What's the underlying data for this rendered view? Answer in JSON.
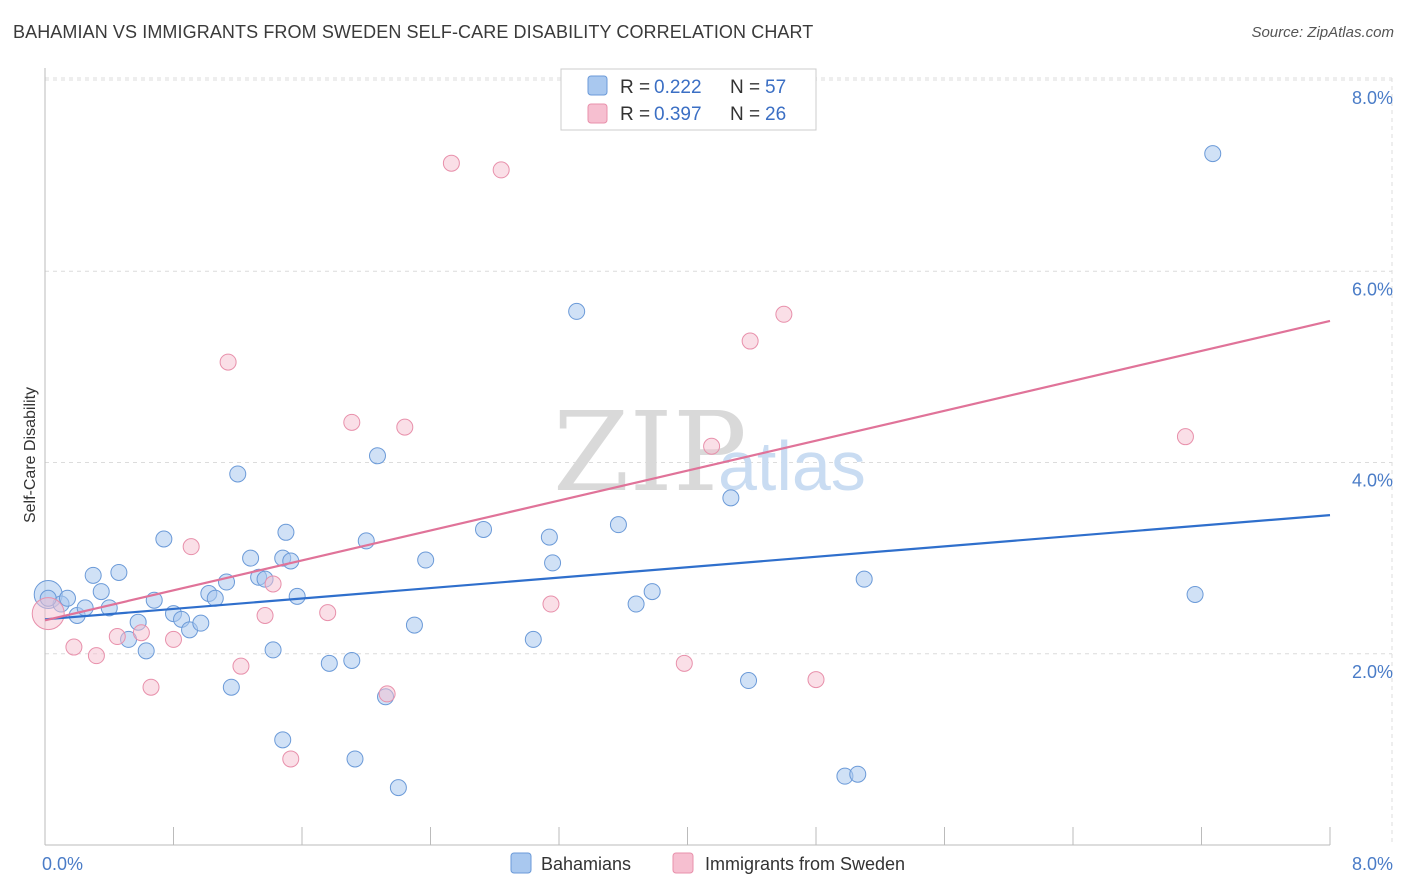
{
  "title": "BAHAMIAN VS IMMIGRANTS FROM SWEDEN SELF-CARE DISABILITY CORRELATION CHART",
  "source": "Source: ZipAtlas.com",
  "watermark": {
    "part1": "ZIP",
    "part2": "atlas"
  },
  "colors": {
    "blue_fill": "#a9c8ef",
    "blue_stroke": "#6b9ad8",
    "blue_line": "#2f6fcc",
    "pink_fill": "#f6bfd0",
    "pink_stroke": "#e890ab",
    "pink_line": "#e07399",
    "grid": "#dcdcdc",
    "tick_text": "#4a7cc7"
  },
  "chart_data": {
    "type": "scatter",
    "title": "BAHAMIAN VS IMMIGRANTS FROM SWEDEN SELF-CARE DISABILITY CORRELATION CHART",
    "xlabel": "",
    "ylabel": "Self-Care Disability",
    "xlim": [
      0,
      8
    ],
    "ylim": [
      0,
      8
    ],
    "x_tick_labels": [
      "0.0%",
      "8.0%"
    ],
    "y_ticks": [
      {
        "value": 2,
        "label": "2.0%"
      },
      {
        "value": 4,
        "label": "4.0%"
      },
      {
        "value": 6,
        "label": "6.0%"
      },
      {
        "value": 8,
        "label": "8.0%"
      }
    ],
    "grid": true,
    "legend": {
      "placement": "top-center",
      "entries": [
        {
          "r_label": "R = ",
          "r_value": "0.222",
          "n_label": "N = ",
          "n_value": "57"
        },
        {
          "r_label": "R = ",
          "r_value": "0.397",
          "n_label": "N = ",
          "n_value": "26"
        }
      ]
    },
    "series": [
      {
        "name": "Bahamians",
        "color": "#a9c8ef",
        "trend": [
          [
            0,
            2.36
          ],
          [
            8,
            3.45
          ]
        ],
        "points": [
          [
            0.02,
            2.62
          ],
          [
            0.1,
            2.52
          ],
          [
            0.14,
            2.58
          ],
          [
            0.2,
            2.4
          ],
          [
            0.25,
            2.48
          ],
          [
            0.3,
            2.82
          ],
          [
            0.35,
            2.65
          ],
          [
            0.4,
            2.48
          ],
          [
            0.46,
            2.85
          ],
          [
            0.52,
            2.15
          ],
          [
            0.58,
            2.33
          ],
          [
            0.63,
            2.03
          ],
          [
            0.68,
            2.56
          ],
          [
            0.74,
            3.2
          ],
          [
            0.8,
            2.42
          ],
          [
            0.85,
            2.36
          ],
          [
            0.9,
            2.25
          ],
          [
            0.97,
            2.32
          ],
          [
            1.02,
            2.63
          ],
          [
            1.06,
            2.58
          ],
          [
            1.13,
            2.75
          ],
          [
            1.16,
            1.65
          ],
          [
            1.2,
            3.88
          ],
          [
            1.28,
            3.0
          ],
          [
            1.33,
            2.8
          ],
          [
            1.37,
            2.78
          ],
          [
            1.42,
            2.04
          ],
          [
            1.48,
            1.1
          ],
          [
            1.5,
            3.27
          ],
          [
            1.48,
            3.0
          ],
          [
            1.53,
            2.97
          ],
          [
            1.57,
            2.6
          ],
          [
            1.77,
            1.9
          ],
          [
            1.91,
            1.93
          ],
          [
            1.93,
            0.9
          ],
          [
            2.0,
            3.18
          ],
          [
            2.07,
            4.07
          ],
          [
            2.12,
            1.55
          ],
          [
            2.2,
            0.6
          ],
          [
            2.3,
            2.3
          ],
          [
            2.37,
            2.98
          ],
          [
            2.73,
            3.3
          ],
          [
            3.04,
            2.15
          ],
          [
            3.14,
            3.22
          ],
          [
            3.16,
            2.95
          ],
          [
            3.31,
            5.58
          ],
          [
            3.57,
            3.35
          ],
          [
            3.68,
            2.52
          ],
          [
            3.78,
            2.65
          ],
          [
            4.27,
            3.63
          ],
          [
            4.38,
            1.72
          ],
          [
            4.98,
            0.72
          ],
          [
            5.06,
            0.74
          ],
          [
            5.1,
            2.78
          ],
          [
            7.16,
            2.62
          ],
          [
            7.27,
            7.23
          ],
          [
            0.02,
            2.58
          ]
        ]
      },
      {
        "name": "Immigrants from Sweden",
        "color": "#f6bfd0",
        "trend": [
          [
            0,
            2.35
          ],
          [
            8,
            5.48
          ]
        ],
        "points": [
          [
            0.02,
            2.42
          ],
          [
            0.18,
            2.07
          ],
          [
            0.32,
            1.98
          ],
          [
            0.45,
            2.18
          ],
          [
            0.6,
            2.22
          ],
          [
            0.66,
            1.65
          ],
          [
            0.8,
            2.15
          ],
          [
            0.91,
            3.12
          ],
          [
            1.14,
            5.05
          ],
          [
            1.22,
            1.87
          ],
          [
            1.37,
            2.4
          ],
          [
            1.42,
            2.73
          ],
          [
            1.53,
            0.9
          ],
          [
            1.76,
            2.43
          ],
          [
            1.91,
            4.42
          ],
          [
            2.13,
            1.58
          ],
          [
            2.24,
            4.37
          ],
          [
            2.53,
            7.13
          ],
          [
            2.84,
            7.06
          ],
          [
            3.15,
            2.52
          ],
          [
            3.98,
            1.9
          ],
          [
            4.15,
            4.17
          ],
          [
            4.39,
            5.27
          ],
          [
            4.6,
            5.55
          ],
          [
            4.8,
            1.73
          ],
          [
            7.1,
            4.27
          ]
        ]
      }
    ]
  },
  "bottom_legend": [
    {
      "label": "Bahamians"
    },
    {
      "label": "Immigrants from Sweden"
    }
  ]
}
